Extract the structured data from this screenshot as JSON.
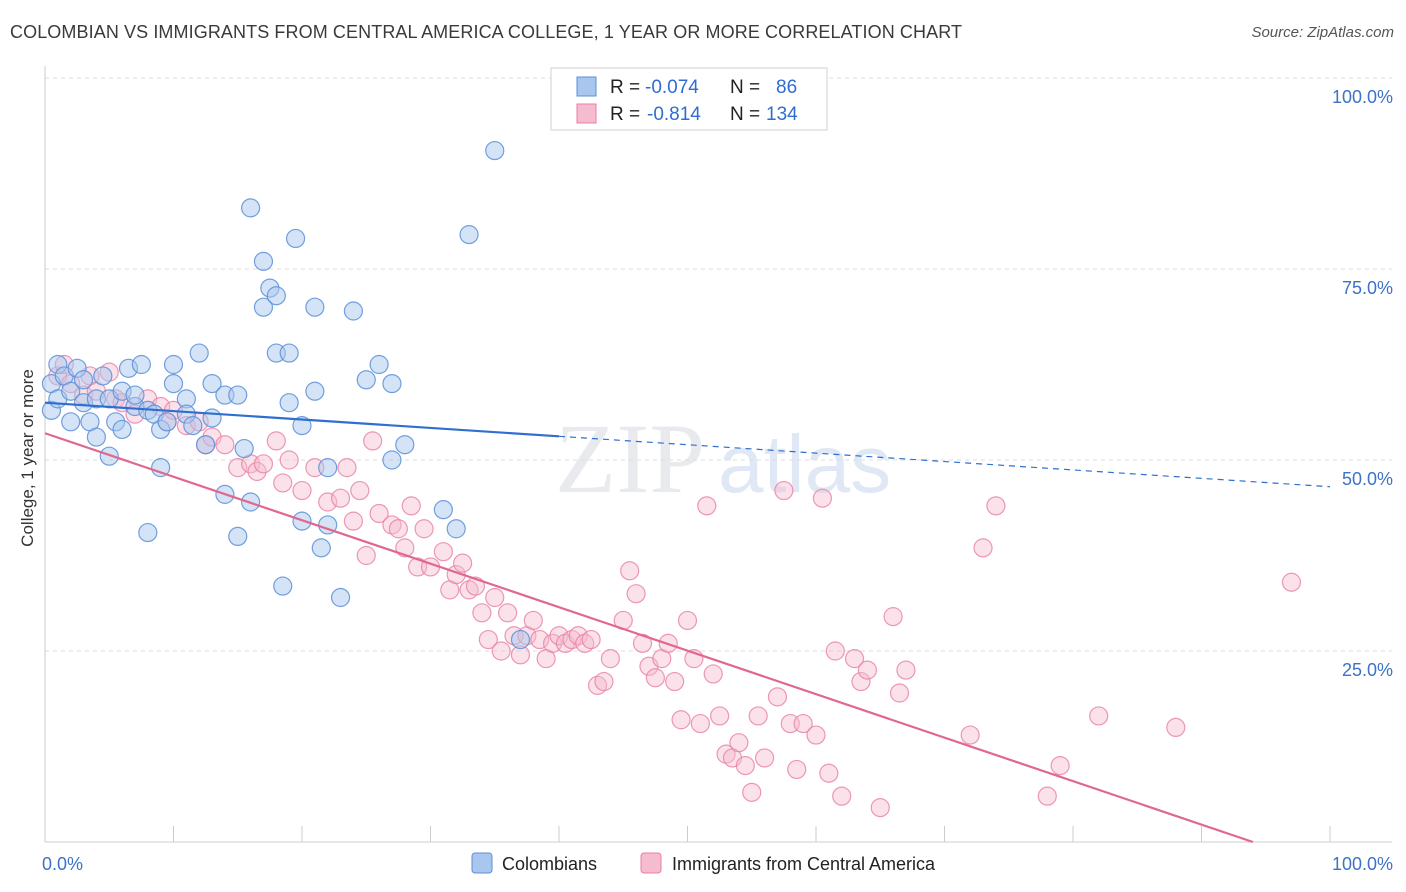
{
  "title": "COLOMBIAN VS IMMIGRANTS FROM CENTRAL AMERICA COLLEGE, 1 YEAR OR MORE CORRELATION CHART",
  "source": "Source: ZipAtlas.com",
  "watermark": {
    "zip": "ZIP",
    "atlas": "atlas"
  },
  "colors": {
    "colombians": "#5b8fd9",
    "colombians_fill": "#a9c7ee",
    "central_america": "#e87fa3",
    "central_america_fill": "#f5bcd0",
    "blue_line": "#2f6fcf",
    "pink_line": "#e0688f",
    "tick_text": "#3d72c7"
  },
  "legend": {
    "rows": [
      {
        "r_label": "R =",
        "r_value": "-0.074",
        "n_label": "N =",
        "n_value": "86"
      },
      {
        "r_label": "R =",
        "r_value": "-0.814",
        "n_label": "N =",
        "n_value": "134"
      }
    ]
  },
  "chart_data": {
    "type": "scatter",
    "title": "COLOMBIAN VS IMMIGRANTS FROM CENTRAL AMERICA COLLEGE, 1 YEAR OR MORE CORRELATION CHART",
    "xlabel": "",
    "ylabel": "College, 1 year or more",
    "xlim": [
      0,
      100
    ],
    "ylim": [
      0,
      100
    ],
    "x_tick_labels": [
      "0.0%",
      "100.0%"
    ],
    "y_tick_labels": [
      "100.0%",
      "75.0%",
      "50.0%",
      "25.0%"
    ],
    "y_ticks": [
      100,
      75,
      50,
      25
    ],
    "grid": true,
    "legend_position": "top-center",
    "series": [
      {
        "name": "Colombians",
        "R": -0.074,
        "N": 86,
        "trend": {
          "x0": 0,
          "y0": 57.5,
          "x_solid_end": 40,
          "x1": 100,
          "y1": 46.5
        },
        "points": [
          [
            0.5,
            56.5
          ],
          [
            0.5,
            60
          ],
          [
            1,
            58
          ],
          [
            1,
            62.5
          ],
          [
            1.5,
            61
          ],
          [
            2,
            55
          ],
          [
            2,
            59
          ],
          [
            2.5,
            62
          ],
          [
            3,
            60.5
          ],
          [
            3,
            57.5
          ],
          [
            3.5,
            55
          ],
          [
            4,
            58
          ],
          [
            4,
            53
          ],
          [
            4.5,
            61
          ],
          [
            5,
            50.5
          ],
          [
            5,
            58
          ],
          [
            5.5,
            55
          ],
          [
            6,
            59
          ],
          [
            6,
            54
          ],
          [
            6.5,
            62
          ],
          [
            7,
            57
          ],
          [
            7,
            58.5
          ],
          [
            7.5,
            62.5
          ],
          [
            8,
            56.5
          ],
          [
            8,
            40.5
          ],
          [
            8.5,
            56
          ],
          [
            9,
            49
          ],
          [
            9,
            54
          ],
          [
            9.5,
            55
          ],
          [
            10,
            60
          ],
          [
            10,
            62.5
          ],
          [
            11,
            58
          ],
          [
            11,
            56
          ],
          [
            11.5,
            54.5
          ],
          [
            12,
            64
          ],
          [
            12.5,
            52
          ],
          [
            13,
            60
          ],
          [
            13,
            55.5
          ],
          [
            14,
            45.5
          ],
          [
            14,
            58.5
          ],
          [
            15,
            40
          ],
          [
            15,
            58.5
          ],
          [
            15.5,
            51.5
          ],
          [
            16,
            83
          ],
          [
            16,
            44.5
          ],
          [
            17,
            70
          ],
          [
            17,
            76
          ],
          [
            17.5,
            72.5
          ],
          [
            18,
            71.5
          ],
          [
            18,
            64
          ],
          [
            18.5,
            33.5
          ],
          [
            19,
            64
          ],
          [
            19,
            57.5
          ],
          [
            19.5,
            79
          ],
          [
            20,
            42
          ],
          [
            20,
            54.5
          ],
          [
            21,
            70
          ],
          [
            21,
            59
          ],
          [
            21.5,
            38.5
          ],
          [
            22,
            41.5
          ],
          [
            22,
            49
          ],
          [
            23,
            32
          ],
          [
            24,
            69.5
          ],
          [
            25,
            60.5
          ],
          [
            26,
            62.5
          ],
          [
            27,
            50
          ],
          [
            27,
            60
          ],
          [
            28,
            52
          ],
          [
            31,
            43.5
          ],
          [
            32,
            41
          ],
          [
            33,
            79.5
          ],
          [
            35,
            90.5
          ],
          [
            37,
            26.5
          ]
        ]
      },
      {
        "name": "Immigrants from Central America",
        "R": -0.814,
        "N": 134,
        "trend": {
          "x0": 0,
          "y0": 53.5,
          "x1": 94,
          "y1": 0
        },
        "points": [
          [
            1,
            61
          ],
          [
            1.5,
            62.5
          ],
          [
            2,
            60
          ],
          [
            3,
            58.5
          ],
          [
            3.5,
            61
          ],
          [
            4,
            59
          ],
          [
            5,
            61.5
          ],
          [
            5.5,
            58
          ],
          [
            6,
            57.5
          ],
          [
            7,
            56
          ],
          [
            8,
            58
          ],
          [
            9,
            57
          ],
          [
            9.5,
            55
          ],
          [
            10,
            56.5
          ],
          [
            11,
            54.5
          ],
          [
            12,
            55
          ],
          [
            12.5,
            52
          ],
          [
            13,
            53
          ],
          [
            14,
            52
          ],
          [
            15,
            49
          ],
          [
            16,
            49.5
          ],
          [
            16.5,
            48.5
          ],
          [
            17,
            49.5
          ],
          [
            18,
            52.5
          ],
          [
            18.5,
            47
          ],
          [
            19,
            50
          ],
          [
            20,
            46
          ],
          [
            21,
            49
          ],
          [
            22,
            44.5
          ],
          [
            23,
            45
          ],
          [
            23.5,
            49
          ],
          [
            24,
            42
          ],
          [
            24.5,
            46
          ],
          [
            25,
            37.5
          ],
          [
            25.5,
            52.5
          ],
          [
            26,
            43
          ],
          [
            27,
            41.5
          ],
          [
            27.5,
            41
          ],
          [
            28,
            38.5
          ],
          [
            28.5,
            44
          ],
          [
            29,
            36
          ],
          [
            29.5,
            41
          ],
          [
            30,
            36
          ],
          [
            31,
            38
          ],
          [
            31.5,
            33
          ],
          [
            32,
            35
          ],
          [
            32.5,
            36.5
          ],
          [
            33,
            33
          ],
          [
            33.5,
            33.5
          ],
          [
            34,
            30
          ],
          [
            34.5,
            26.5
          ],
          [
            35,
            32
          ],
          [
            35.5,
            25
          ],
          [
            36,
            30
          ],
          [
            36.5,
            27
          ],
          [
            37,
            24.5
          ],
          [
            37.5,
            27
          ],
          [
            38,
            29
          ],
          [
            38.5,
            26.5
          ],
          [
            39,
            24
          ],
          [
            39.5,
            26
          ],
          [
            40,
            27
          ],
          [
            40.5,
            26
          ],
          [
            41,
            26.5
          ],
          [
            41.5,
            27
          ],
          [
            42,
            26
          ],
          [
            42.5,
            26.5
          ],
          [
            43,
            20.5
          ],
          [
            43.5,
            21
          ],
          [
            44,
            24
          ],
          [
            45,
            29
          ],
          [
            45.5,
            35.5
          ],
          [
            46,
            32.5
          ],
          [
            46.5,
            26
          ],
          [
            47,
            23
          ],
          [
            47.5,
            21.5
          ],
          [
            48,
            24
          ],
          [
            48.5,
            26
          ],
          [
            49,
            21
          ],
          [
            49.5,
            16
          ],
          [
            50,
            29
          ],
          [
            50.5,
            24
          ],
          [
            51,
            15.5
          ],
          [
            51.5,
            44
          ],
          [
            52,
            22
          ],
          [
            52.5,
            16.5
          ],
          [
            53,
            11.5
          ],
          [
            53.5,
            11
          ],
          [
            54,
            13
          ],
          [
            54.5,
            10
          ],
          [
            55,
            6.5
          ],
          [
            55.5,
            16.5
          ],
          [
            56,
            11
          ],
          [
            57,
            19
          ],
          [
            57.5,
            46
          ],
          [
            58,
            15.5
          ],
          [
            58.5,
            9.5
          ],
          [
            59,
            15.5
          ],
          [
            60,
            14
          ],
          [
            60.5,
            45
          ],
          [
            61,
            9
          ],
          [
            61.5,
            25
          ],
          [
            62,
            6
          ],
          [
            63,
            24
          ],
          [
            63.5,
            21
          ],
          [
            64,
            22.5
          ],
          [
            65,
            4.5
          ],
          [
            66,
            29.5
          ],
          [
            66.5,
            19.5
          ],
          [
            67,
            22.5
          ],
          [
            72,
            14
          ],
          [
            73,
            38.5
          ],
          [
            74,
            44
          ],
          [
            78,
            6
          ],
          [
            79,
            10
          ],
          [
            82,
            16.5
          ],
          [
            88,
            15
          ],
          [
            97,
            34
          ]
        ]
      }
    ]
  },
  "bottom_legend": {
    "items": [
      "Colombians",
      "Immigrants from Central America"
    ]
  }
}
